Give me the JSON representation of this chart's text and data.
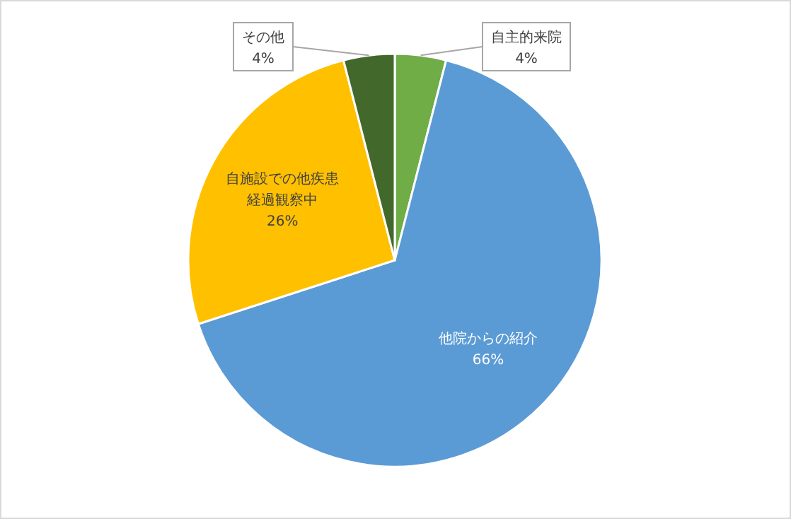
{
  "chart_data": {
    "type": "pie",
    "categories": [
      "自主的来院",
      "他院からの紹介",
      "自施設での他疾患経過観察中",
      "その他"
    ],
    "values": [
      4,
      66,
      26,
      4
    ],
    "colors": [
      "#70ad47",
      "#5b9bd5",
      "#ffc000",
      "#43682b"
    ],
    "value_labels": [
      "4%",
      "66%",
      "26%",
      "4%"
    ]
  }
}
